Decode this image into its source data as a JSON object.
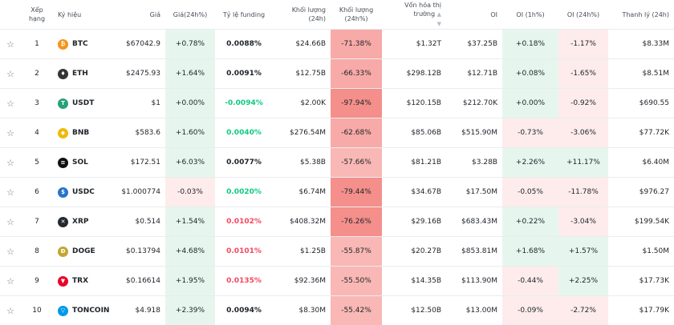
{
  "headers": {
    "star": "",
    "rank": "Xếp hạng",
    "symbol": "Ký hiệu",
    "price": "Giá",
    "change24h": "Giá(24h%)",
    "funding": "Tỷ lệ funding",
    "volume24h": "Khối lượng (24h)",
    "volume_change": "Khối lượng (24h%)",
    "market_cap": "Vốn hóa thị trường",
    "oi": "OI",
    "oi_1h": "OI (1h%)",
    "oi_24h": "OI (24h%)",
    "liquidation": "Thanh lý (24h)"
  },
  "colors": {
    "green_bg": "#e6f6ee",
    "red_bg_light": "#fdeceb",
    "red_bg_mid": "#f7aaa7",
    "red_bg_strong": "#f48f8b",
    "green_text": "#0ecb81",
    "red_text": "#f6465d"
  },
  "rows": [
    {
      "rank": "1",
      "symbol": "BTC",
      "icon": "bitcoin-icon",
      "icon_color": "#f7931a",
      "icon_glyph": "₿",
      "price": "$67042.9",
      "change": "+0.78%",
      "funding": "0.0088%",
      "volume": "$24.66B",
      "vol_change": "-71.38%",
      "mcap": "$1.32T",
      "oi": "$37.25B",
      "oi1h": "+0.18%",
      "oi24h": "-1.17%",
      "liq": "$8.33M"
    },
    {
      "rank": "2",
      "symbol": "ETH",
      "icon": "ethereum-icon",
      "icon_color": "#343434",
      "icon_glyph": "♦",
      "price": "$2475.93",
      "change": "+1.64%",
      "funding": "0.0091%",
      "volume": "$12.75B",
      "vol_change": "-66.33%",
      "mcap": "$298.12B",
      "oi": "$12.71B",
      "oi1h": "+0.08%",
      "oi24h": "-1.65%",
      "liq": "$8.51M"
    },
    {
      "rank": "3",
      "symbol": "USDT",
      "icon": "tether-icon",
      "icon_color": "#26a17b",
      "icon_glyph": "T",
      "price": "$1",
      "change": "+0.00%",
      "funding": "-0.0094%",
      "volume": "$2.00K",
      "vol_change": "-97.94%",
      "mcap": "$120.15B",
      "oi": "$212.70K",
      "oi1h": "+0.00%",
      "oi24h": "-0.92%",
      "liq": "$690.55"
    },
    {
      "rank": "4",
      "symbol": "BNB",
      "icon": "bnb-icon",
      "icon_color": "#f0b90b",
      "icon_glyph": "◆",
      "price": "$583.6",
      "change": "+1.60%",
      "funding": "0.0040%",
      "volume": "$276.54M",
      "vol_change": "-62.68%",
      "mcap": "$85.06B",
      "oi": "$515.90M",
      "oi1h": "-0.73%",
      "oi24h": "-3.06%",
      "liq": "$77.72K"
    },
    {
      "rank": "5",
      "symbol": "SOL",
      "icon": "solana-icon",
      "icon_color": "#111111",
      "icon_glyph": "≡",
      "price": "$172.51",
      "change": "+6.03%",
      "funding": "0.0077%",
      "volume": "$5.38B",
      "vol_change": "-57.66%",
      "mcap": "$81.21B",
      "oi": "$3.28B",
      "oi1h": "+2.26%",
      "oi24h": "+11.17%",
      "liq": "$6.40M"
    },
    {
      "rank": "6",
      "symbol": "USDC",
      "icon": "usdc-icon",
      "icon_color": "#2775ca",
      "icon_glyph": "$",
      "price": "$1.000774",
      "change": "-0.03%",
      "funding": "0.0020%",
      "volume": "$6.74M",
      "vol_change": "-79.44%",
      "mcap": "$34.67B",
      "oi": "$17.50M",
      "oi1h": "-0.05%",
      "oi24h": "-11.78%",
      "liq": "$976.27"
    },
    {
      "rank": "7",
      "symbol": "XRP",
      "icon": "xrp-icon",
      "icon_color": "#23292f",
      "icon_glyph": "✕",
      "price": "$0.514",
      "change": "+1.54%",
      "funding": "0.0102%",
      "volume": "$408.32M",
      "vol_change": "-76.26%",
      "mcap": "$29.16B",
      "oi": "$683.43M",
      "oi1h": "+0.22%",
      "oi24h": "-3.04%",
      "liq": "$199.54K"
    },
    {
      "rank": "8",
      "symbol": "DOGE",
      "icon": "dogecoin-icon",
      "icon_color": "#c2a633",
      "icon_glyph": "Ð",
      "price": "$0.13794",
      "change": "+4.68%",
      "funding": "0.0101%",
      "volume": "$1.25B",
      "vol_change": "-55.87%",
      "mcap": "$20.27B",
      "oi": "$853.81M",
      "oi1h": "+1.68%",
      "oi24h": "+1.57%",
      "liq": "$1.50M"
    },
    {
      "rank": "9",
      "symbol": "TRX",
      "icon": "tron-icon",
      "icon_color": "#eb0029",
      "icon_glyph": "▼",
      "price": "$0.16614",
      "change": "+1.95%",
      "funding": "0.0135%",
      "volume": "$92.36M",
      "vol_change": "-55.50%",
      "mcap": "$14.35B",
      "oi": "$113.90M",
      "oi1h": "-0.44%",
      "oi24h": "+2.25%",
      "liq": "$17.73K"
    },
    {
      "rank": "10",
      "symbol": "TONCOIN",
      "icon": "toncoin-icon",
      "icon_color": "#0098ea",
      "icon_glyph": "▽",
      "price": "$4.918",
      "change": "+2.39%",
      "funding": "0.0094%",
      "volume": "$8.30M",
      "vol_change": "-55.42%",
      "mcap": "$12.50B",
      "oi": "$13.00M",
      "oi1h": "-0.09%",
      "oi24h": "-2.72%",
      "liq": "$17.79K"
    }
  ]
}
